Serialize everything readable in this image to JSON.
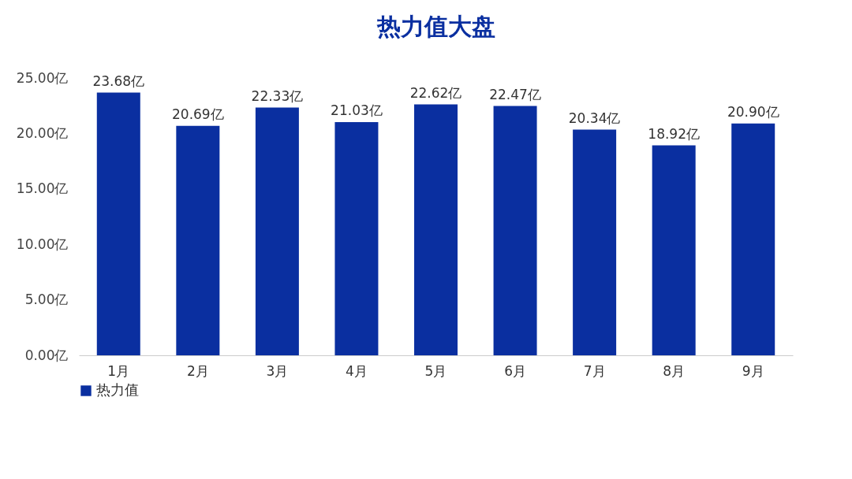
{
  "chart_data": {
    "type": "bar",
    "title": "热力值大盘",
    "categories": [
      "1月",
      "2月",
      "3月",
      "4月",
      "5月",
      "6月",
      "7月",
      "8月",
      "9月"
    ],
    "series": [
      {
        "name": "热力值",
        "color": "#0a2fa0",
        "values": [
          23.68,
          20.69,
          22.33,
          21.03,
          22.62,
          22.47,
          20.34,
          18.92,
          20.9
        ],
        "value_labels": [
          "23.68亿",
          "20.69亿",
          "22.33亿",
          "21.03亿",
          "22.62亿",
          "22.47亿",
          "20.34亿",
          "18.92亿",
          "20.90亿"
        ]
      }
    ],
    "ylim": [
      0,
      25
    ],
    "yticks": [
      {
        "value": 0,
        "label": "0.00亿"
      },
      {
        "value": 5,
        "label": "5.00亿"
      },
      {
        "value": 10,
        "label": "10.00亿"
      },
      {
        "value": 15,
        "label": "15.00亿"
      },
      {
        "value": 20,
        "label": "20.00亿"
      },
      {
        "value": 25,
        "label": "25.00亿"
      }
    ],
    "grid": false,
    "legend": "bottom"
  }
}
